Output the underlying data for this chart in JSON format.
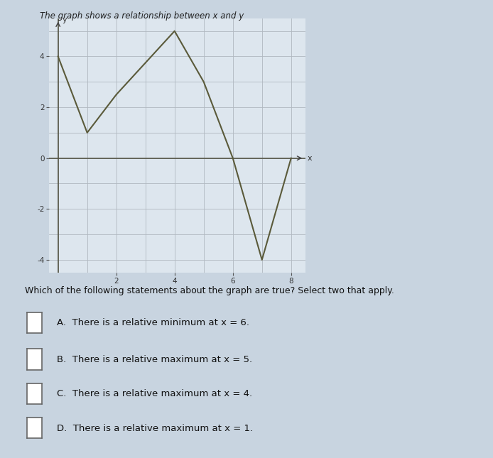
{
  "x_points": [
    0,
    1,
    2,
    4,
    5,
    6,
    7,
    8
  ],
  "y_points": [
    4,
    1,
    2.5,
    5,
    3,
    0,
    -4,
    0
  ],
  "line_color": "#5a5a3a",
  "line_width": 1.5,
  "xlim": [
    -0.3,
    8.5
  ],
  "ylim": [
    -4.5,
    5.5
  ],
  "xtick_labels": [
    2,
    4,
    6,
    8
  ],
  "ytick_labels": [
    -4,
    -2,
    0,
    2,
    4
  ],
  "xlabel": "x",
  "ylabel": "y",
  "grid_color": "#b0b8c0",
  "bg_color": "#c8d4e0",
  "plot_bg": "#dde6ee",
  "header_text": "The graph shows a relationship between x and y",
  "question_text": "Which of the following statements about the graph are true? Select two that apply.",
  "options": [
    "A.  There is a relative minimum at x = 6.",
    "B.  There is a relative maximum at x = 5.",
    "C.  There is a relative maximum at x = 4.",
    "D.  There is a relative maximum at x = 1."
  ]
}
